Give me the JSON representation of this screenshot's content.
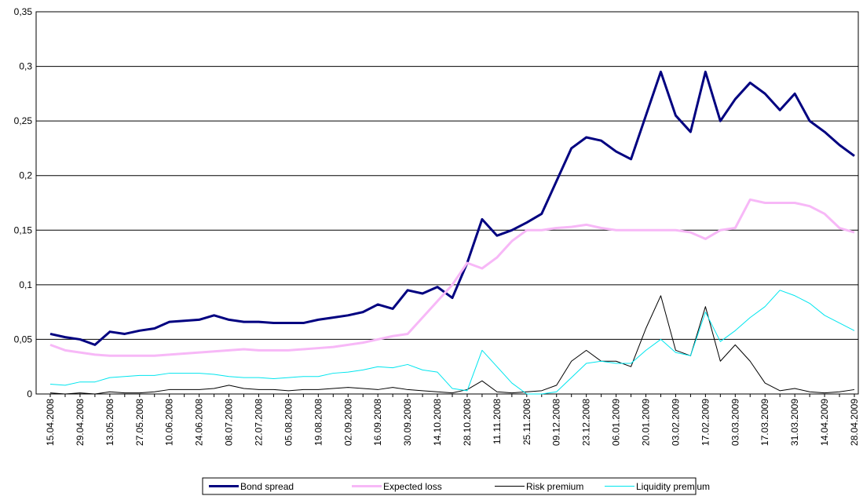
{
  "chart_data": {
    "type": "line",
    "categories": [
      "15.04.2008",
      null,
      "29.04.2008",
      null,
      "13.05.2008",
      null,
      "27.05.2008",
      null,
      "10.06.2008",
      null,
      "24.06.2008",
      null,
      "08.07.2008",
      null,
      "22.07.2008",
      null,
      "05.08.2008",
      null,
      "19.08.2008",
      null,
      "02.09.2008",
      null,
      "16.09.2008",
      null,
      "30.09.2008",
      null,
      "14.10.2008",
      null,
      "28.10.2008",
      null,
      "11.11.2008",
      null,
      "25.11.2008",
      null,
      "09.12.2008",
      null,
      "23.12.2008",
      null,
      "06.01.2009",
      null,
      "20.01.2009",
      null,
      "03.02.2009",
      null,
      "17.02.2009",
      null,
      "03.03.2009",
      null,
      "17.03.2009",
      null,
      "31.03.2009",
      null,
      "14.04.2009",
      null,
      "28.04.2009"
    ],
    "series": [
      {
        "name": "Bond spread",
        "color": "#000080",
        "values": [
          0.055,
          0.052,
          0.05,
          0.045,
          0.057,
          0.055,
          0.058,
          0.06,
          0.066,
          0.067,
          0.068,
          0.072,
          0.068,
          0.066,
          0.066,
          0.065,
          0.065,
          0.065,
          0.068,
          0.07,
          0.072,
          0.075,
          0.082,
          0.078,
          0.095,
          0.092,
          0.098,
          0.088,
          0.12,
          0.16,
          0.145,
          0.15,
          0.157,
          0.165,
          0.195,
          0.225,
          0.235,
          0.232,
          0.222,
          0.215,
          0.255,
          0.295,
          0.255,
          0.24,
          0.295,
          0.25,
          0.27,
          0.285,
          0.275,
          0.26,
          0.275,
          0.25,
          0.24,
          0.228,
          0.218
        ]
      },
      {
        "name": "Expected loss",
        "color": "#f7b8f7",
        "values": [
          0.045,
          0.04,
          0.038,
          0.036,
          0.035,
          0.035,
          0.035,
          0.035,
          0.036,
          0.037,
          0.038,
          0.039,
          0.04,
          0.041,
          0.04,
          0.04,
          0.04,
          0.041,
          0.042,
          0.043,
          0.045,
          0.047,
          0.05,
          0.053,
          0.055,
          0.07,
          0.085,
          0.1,
          0.12,
          0.115,
          0.125,
          0.14,
          0.15,
          0.15,
          0.152,
          0.153,
          0.155,
          0.152,
          0.15,
          0.15,
          0.15,
          0.15,
          0.15,
          0.148,
          0.142,
          0.15,
          0.152,
          0.178,
          0.175,
          0.175,
          0.175,
          0.172,
          0.165,
          0.152,
          0.148
        ]
      },
      {
        "name": "Risk premium",
        "color": "#000000",
        "values": [
          0.001,
          0.0,
          0.001,
          0.0,
          0.002,
          0.001,
          0.001,
          0.002,
          0.004,
          0.004,
          0.004,
          0.005,
          0.008,
          0.005,
          0.004,
          0.004,
          0.003,
          0.004,
          0.004,
          0.005,
          0.006,
          0.005,
          0.004,
          0.006,
          0.004,
          0.003,
          0.002,
          0.001,
          0.004,
          0.012,
          0.002,
          0.001,
          0.002,
          0.003,
          0.008,
          0.03,
          0.04,
          0.03,
          0.03,
          0.025,
          0.06,
          0.09,
          0.04,
          0.035,
          0.08,
          0.03,
          0.045,
          0.03,
          0.01,
          0.003,
          0.005,
          0.002,
          0.001,
          0.002,
          0.004
        ]
      },
      {
        "name": "Liquidity premium",
        "color": "#00e5ee",
        "values": [
          0.009,
          0.008,
          0.011,
          0.011,
          0.015,
          0.016,
          0.017,
          0.017,
          0.019,
          0.019,
          0.019,
          0.018,
          0.016,
          0.015,
          0.015,
          0.014,
          0.015,
          0.016,
          0.016,
          0.019,
          0.02,
          0.022,
          0.025,
          0.024,
          0.027,
          0.022,
          0.02,
          0.005,
          0.003,
          0.04,
          0.025,
          0.01,
          0.0,
          0.0,
          0.002,
          0.015,
          0.028,
          0.03,
          0.028,
          0.028,
          0.04,
          0.05,
          0.038,
          0.035,
          0.075,
          0.048,
          0.058,
          0.07,
          0.08,
          0.095,
          0.09,
          0.083,
          0.072,
          0.065,
          0.058
        ]
      }
    ],
    "ylim": [
      0,
      0.35
    ],
    "yticks": [
      0,
      {
        "value": 0.05,
        "label": "0,05"
      },
      {
        "value": 0.1,
        "label": "0,1"
      },
      {
        "value": 0.15,
        "label": "0,15"
      },
      {
        "value": 0.2,
        "label": "0,2"
      },
      {
        "value": 0.25,
        "label": "0,25"
      },
      {
        "value": 0.3,
        "label": "0,3"
      },
      {
        "value": 0.35,
        "label": "0,35"
      }
    ],
    "grid": true,
    "legend": "bottom"
  }
}
